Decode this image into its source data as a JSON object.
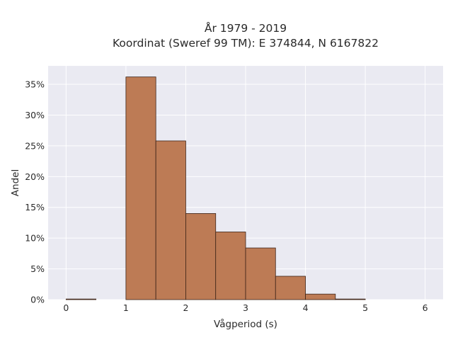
{
  "chart_data": {
    "type": "bar",
    "title_lines": [
      "År 1979 - 2019",
      "Koordinat (Sweref 99 TM): E 374844, N 6167822"
    ],
    "xlabel": "Vågperiod (s)",
    "ylabel": "Andel",
    "bin_width": 0.5,
    "bins": [
      {
        "x0": 0.0,
        "value": 0.1
      },
      {
        "x0": 0.5,
        "value": 0.0
      },
      {
        "x0": 1.0,
        "value": 36.2
      },
      {
        "x0": 1.5,
        "value": 25.8
      },
      {
        "x0": 2.0,
        "value": 14.0
      },
      {
        "x0": 2.5,
        "value": 11.0
      },
      {
        "x0": 3.0,
        "value": 8.4
      },
      {
        "x0": 3.5,
        "value": 3.8
      },
      {
        "x0": 4.0,
        "value": 0.9
      },
      {
        "x0": 4.5,
        "value": 0.1
      }
    ],
    "xlim": [
      -0.3,
      6.3
    ],
    "ylim": [
      0,
      38
    ],
    "xticks": [
      0,
      1,
      2,
      3,
      4,
      5,
      6
    ],
    "xtick_labels": [
      "0",
      "1",
      "2",
      "3",
      "4",
      "5",
      "6"
    ],
    "yticks": [
      0,
      5,
      10,
      15,
      20,
      25,
      30,
      35
    ],
    "ytick_labels": [
      "0%",
      "5%",
      "10%",
      "15%",
      "20%",
      "25%",
      "30%",
      "35%"
    ],
    "grid": true,
    "colors": {
      "bar_fill": "#bd7b55",
      "bar_edge": "#3d2418",
      "plot_bg": "#eaeaf2",
      "grid": "#ffffff"
    }
  }
}
